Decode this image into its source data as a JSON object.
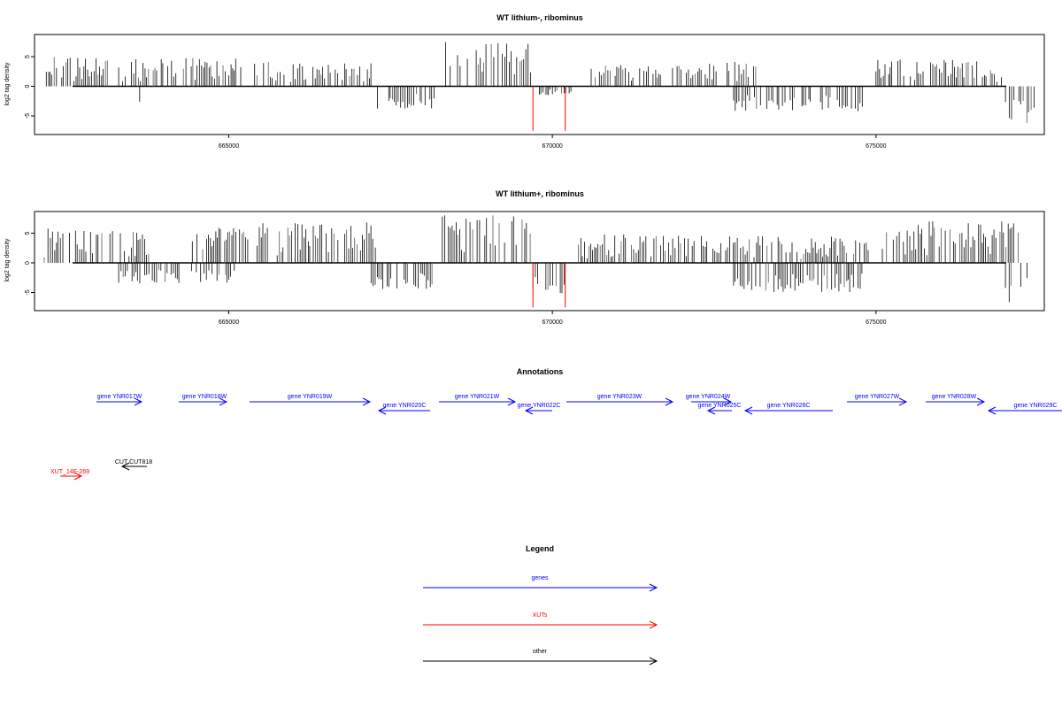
{
  "chart_data": [
    {
      "type": "bar",
      "title": "WT lithium-, ribominus",
      "ylabel": "log2 tag density",
      "xlim": [
        662000,
        677600
      ],
      "ylim": [
        -8.2,
        8.2
      ],
      "yticks": [
        -5,
        0,
        5
      ],
      "xticks": [
        "665000",
        "670000",
        "675000"
      ],
      "xtick_values": [
        665000,
        670000,
        675000
      ],
      "grid": false,
      "segments_plus": [
        {
          "x0": 662150,
          "x1": 663150,
          "max": 5.0
        },
        {
          "x0": 663300,
          "x1": 664200,
          "max": 4.6
        },
        {
          "x0": 664300,
          "x1": 665200,
          "max": 4.8
        },
        {
          "x0": 665400,
          "x1": 666200,
          "max": 4.2
        },
        {
          "x0": 666300,
          "x1": 667200,
          "max": 4.0
        },
        {
          "x0": 668350,
          "x1": 669700,
          "max": 7.5
        },
        {
          "x0": 670600,
          "x1": 671700,
          "max": 3.6
        },
        {
          "x0": 671800,
          "x1": 672600,
          "max": 3.8
        },
        {
          "x0": 672700,
          "x1": 673200,
          "max": 4.2
        },
        {
          "x0": 675000,
          "x1": 677000,
          "max": 4.6
        }
      ],
      "segments_minus": [
        {
          "x0": 663600,
          "x1": 663700,
          "min": -3.0
        },
        {
          "x0": 664000,
          "x1": 664050,
          "min": -3.0
        },
        {
          "x0": 667300,
          "x1": 668200,
          "min": -3.8
        },
        {
          "x0": 669800,
          "x1": 670300,
          "min": -1.5
        },
        {
          "x0": 672800,
          "x1": 674800,
          "min": -4.2
        },
        {
          "x0": 677000,
          "x1": 677500,
          "min": -6.5
        }
      ],
      "red_spikes": [
        {
          "x": 669700,
          "y": -7.5
        },
        {
          "x": 670200,
          "y": -7.5
        }
      ]
    },
    {
      "type": "bar",
      "title": "WT lithium+, ribominus",
      "ylabel": "log2 tag density",
      "xlim": [
        662000,
        677600
      ],
      "ylim": [
        -8.2,
        8.2
      ],
      "yticks": [
        -5,
        0,
        5
      ],
      "xticks": [
        "665000",
        "670000",
        "675000"
      ],
      "xtick_values": [
        665000,
        670000,
        675000
      ],
      "grid": false,
      "segments_plus": [
        {
          "x0": 662150,
          "x1": 664000,
          "max": 5.8
        },
        {
          "x0": 664400,
          "x1": 665300,
          "max": 6.0
        },
        {
          "x0": 665400,
          "x1": 667300,
          "max": 6.8
        },
        {
          "x0": 668300,
          "x1": 669700,
          "max": 8.2
        },
        {
          "x0": 670400,
          "x1": 672200,
          "max": 4.8
        },
        {
          "x0": 672300,
          "x1": 674900,
          "max": 4.5
        },
        {
          "x0": 675000,
          "x1": 677200,
          "max": 7.0
        }
      ],
      "segments_minus": [
        {
          "x0": 663300,
          "x1": 665100,
          "min": -3.5
        },
        {
          "x0": 667200,
          "x1": 668200,
          "min": -4.5
        },
        {
          "x0": 669700,
          "x1": 670200,
          "min": -5.5
        },
        {
          "x0": 672800,
          "x1": 674800,
          "min": -5.0
        },
        {
          "x0": 677000,
          "x1": 677400,
          "min": -7.5
        }
      ],
      "red_spikes": [
        {
          "x": 669700,
          "y": -7.5
        },
        {
          "x": 670200,
          "y": -7.5
        }
      ]
    }
  ],
  "annotations": {
    "title": "Annotations",
    "genes": [
      {
        "label": "gene YNR017W"
      },
      {
        "label": "gene YNR018W"
      },
      {
        "label": "gene YNR019W"
      },
      {
        "label": "gene YNR020C"
      },
      {
        "label": "gene YNR021W"
      },
      {
        "label": "gene YNR022C"
      },
      {
        "label": "gene YNR023W"
      },
      {
        "label": "gene YNR024W"
      },
      {
        "label": "gene YNR025C"
      },
      {
        "label": "gene YNR026C"
      },
      {
        "label": "gene YNR027W"
      },
      {
        "label": "gene YNR028W"
      },
      {
        "label": "gene YNR029C"
      }
    ],
    "xuts": [
      {
        "label": "XUT_14F-269"
      }
    ],
    "other": [
      {
        "label": "CUT CUT818"
      }
    ]
  },
  "legend": {
    "title": "Legend",
    "items": [
      {
        "label": "genes",
        "color": "#0000ff"
      },
      {
        "label": "XUTs",
        "color": "#ff0000"
      },
      {
        "label": "other",
        "color": "#000000"
      }
    ]
  },
  "colors": {
    "gene": "#0000ff",
    "xut": "#ff0000",
    "other": "#000000",
    "bars": "#000000",
    "spike": "#ff0000"
  }
}
